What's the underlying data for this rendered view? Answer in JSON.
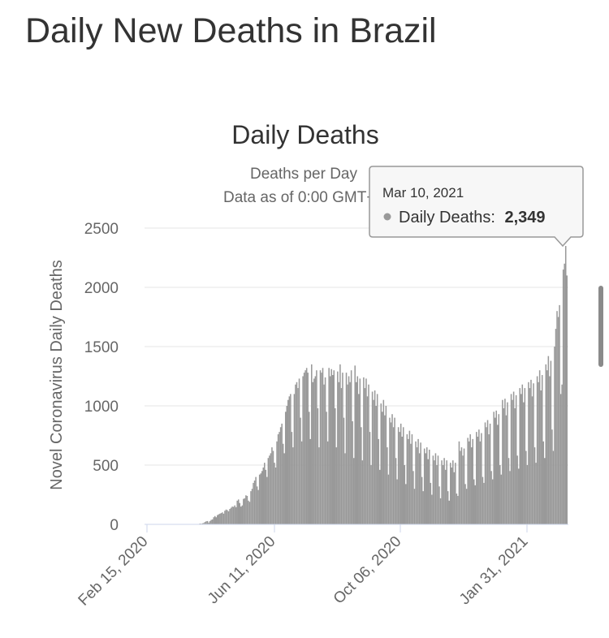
{
  "page": {
    "title": "Daily New Deaths in Brazil"
  },
  "chart_data": {
    "type": "bar",
    "title": "Daily Deaths",
    "subtitle_lines": [
      "Deaths per Day",
      "Data as of 0:00 GMT+0"
    ],
    "ylabel": "Novel Coronavirus Daily Deaths",
    "xlabel": "",
    "ylim": [
      0,
      2500
    ],
    "y_ticks": [
      0,
      500,
      1000,
      1500,
      2000,
      2500
    ],
    "x_tick_labels": [
      "Feb 15, 2020",
      "Jun 11, 2020",
      "Oct 06, 2020",
      "Jan 31, 2021"
    ],
    "x_start": "Feb 15, 2020",
    "x_end": "Mar 13, 2021",
    "grid": true,
    "bar_color": "#999999",
    "values": [
      0,
      0,
      0,
      0,
      0,
      0,
      0,
      0,
      0,
      0,
      0,
      0,
      0,
      0,
      0,
      0,
      0,
      0,
      0,
      0,
      0,
      0,
      0,
      0,
      0,
      0,
      0,
      0,
      0,
      0,
      0,
      0,
      0,
      0,
      0,
      0,
      0,
      0,
      0,
      1,
      0,
      2,
      3,
      7,
      5,
      9,
      12,
      20,
      26,
      28,
      15,
      28,
      38,
      42,
      60,
      70,
      60,
      78,
      85,
      90,
      95,
      101,
      90,
      115,
      125,
      120,
      110,
      130,
      140,
      150,
      148,
      160,
      145,
      200,
      210,
      180,
      150,
      160,
      215,
      220,
      245,
      240,
      200,
      190,
      280,
      300,
      350,
      370,
      400,
      320,
      290,
      420,
      430,
      450,
      480,
      520,
      460,
      400,
      560,
      580,
      600,
      650,
      620,
      520,
      480,
      700,
      760,
      780,
      820,
      850,
      680,
      600,
      950,
      1000,
      1050,
      1080,
      1100,
      780,
      650,
      1100,
      1180,
      1200,
      1150,
      1230,
      900,
      700,
      1250,
      1280,
      1300,
      1320,
      1280,
      950,
      720,
      1350,
      1200,
      1230,
      1250,
      1300,
      980,
      650,
      1300,
      1280,
      1320,
      1180,
      1240,
      950,
      700,
      1320,
      1250,
      1310,
      1260,
      1300,
      980,
      650,
      1290,
      1200,
      1350,
      1150,
      1280,
      900,
      600,
      1280,
      1180,
      1250,
      1200,
      1300,
      870,
      560,
      1340,
      1200,
      1250,
      1100,
      1230,
      820,
      540,
      1240,
      1150,
      1230,
      1080,
      1180,
      780,
      500,
      1120,
      1050,
      1130,
      1000,
      1100,
      720,
      460,
      1020,
      950,
      1050,
      920,
      1000,
      650,
      420,
      900,
      860,
      930,
      820,
      900,
      560,
      380,
      820,
      780,
      850,
      740,
      820,
      500,
      340,
      760,
      720,
      790,
      680,
      760,
      450,
      300,
      700,
      650,
      720,
      600,
      690,
      400,
      280,
      640,
      600,
      650,
      550,
      630,
      350,
      250,
      580,
      540,
      600,
      500,
      580,
      320,
      220,
      540,
      500,
      560,
      460,
      540,
      280,
      200,
      520,
      480,
      540,
      440,
      520,
      260,
      240,
      700,
      620,
      650,
      580,
      640,
      340,
      300,
      730,
      700,
      760,
      650,
      720,
      380,
      330,
      780,
      740,
      800,
      700,
      770,
      400,
      350,
      860,
      820,
      880,
      760,
      850,
      450,
      380,
      950,
      900,
      960,
      840,
      930,
      500,
      420,
      1050,
      980,
      1060,
      920,
      1030,
      560,
      450,
      1100,
      1050,
      1120,
      980,
      1090,
      580,
      470,
      1150,
      1100,
      1180,
      1030,
      1150,
      620,
      500,
      1200,
      1150,
      1220,
      1080,
      1190,
      650,
      520,
      1250,
      1200,
      1300,
      1130,
      1260,
      700,
      560,
      1350,
      1300,
      1420,
      1250,
      1380,
      800,
      620,
      1500,
      1650,
      1800,
      1750,
      1850,
      1100,
      1180,
      2150,
      2200,
      2349,
      2100
    ]
  },
  "tooltip": {
    "date": "Mar 10, 2021",
    "series": "Daily Deaths:",
    "value": "2,349",
    "marker_color": "#999999"
  }
}
